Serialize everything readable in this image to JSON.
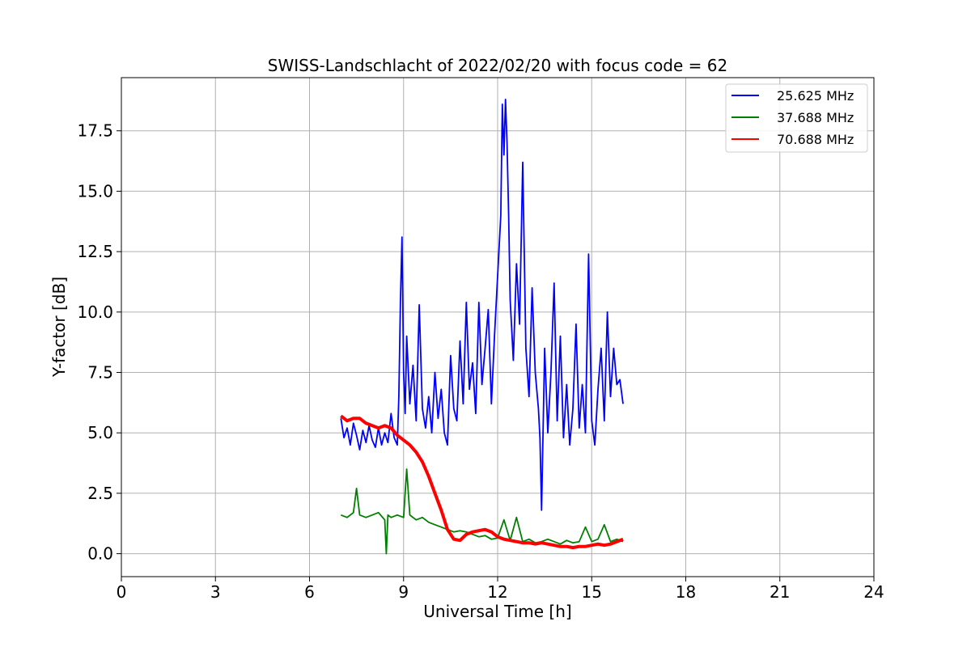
{
  "chart_data": {
    "type": "line",
    "title": "SWISS-Landschlacht of 2022/02/20 with focus code = 62",
    "xlabel": "Universal Time [h]",
    "ylabel": "Y-factor [dB]",
    "xlim": [
      0,
      24
    ],
    "ylim": [
      -0.95,
      19.7
    ],
    "xticks": [
      0,
      3,
      6,
      9,
      12,
      15,
      18,
      21,
      24
    ],
    "xtick_labels": [
      "0",
      "3",
      "6",
      "9",
      "12",
      "15",
      "18",
      "21",
      "24"
    ],
    "yticks": [
      0.0,
      2.5,
      5.0,
      7.5,
      10.0,
      12.5,
      15.0,
      17.5
    ],
    "ytick_labels": [
      "0.0",
      "2.5",
      "5.0",
      "7.5",
      "10.0",
      "12.5",
      "15.0",
      "17.5"
    ],
    "grid": true,
    "legend_position": "top-right",
    "series": [
      {
        "name": "25.625 MHz",
        "color": "#0000ff",
        "x": [
          7.0,
          7.1,
          7.2,
          7.3,
          7.4,
          7.5,
          7.6,
          7.7,
          7.8,
          7.9,
          8.0,
          8.1,
          8.2,
          8.3,
          8.4,
          8.5,
          8.6,
          8.7,
          8.8,
          8.85,
          8.9,
          8.95,
          9.0,
          9.05,
          9.1,
          9.2,
          9.3,
          9.4,
          9.5,
          9.6,
          9.7,
          9.8,
          9.9,
          10.0,
          10.1,
          10.2,
          10.3,
          10.4,
          10.5,
          10.6,
          10.7,
          10.8,
          10.9,
          11.0,
          11.1,
          11.2,
          11.3,
          11.4,
          11.5,
          11.6,
          11.7,
          11.8,
          11.9,
          12.0,
          12.1,
          12.15,
          12.2,
          12.25,
          12.3,
          12.35,
          12.4,
          12.5,
          12.6,
          12.7,
          12.8,
          12.9,
          13.0,
          13.1,
          13.2,
          13.3,
          13.35,
          13.4,
          13.5,
          13.6,
          13.7,
          13.8,
          13.9,
          14.0,
          14.1,
          14.2,
          14.3,
          14.4,
          14.5,
          14.6,
          14.7,
          14.8,
          14.9,
          15.0,
          15.1,
          15.2,
          15.3,
          15.4,
          15.5,
          15.6,
          15.7,
          15.8,
          15.9,
          16.0
        ],
        "y": [
          5.6,
          4.8,
          5.2,
          4.5,
          5.4,
          4.9,
          4.3,
          5.1,
          4.6,
          5.3,
          4.7,
          4.4,
          5.2,
          4.5,
          5.0,
          4.6,
          5.8,
          4.8,
          4.5,
          6.5,
          10.5,
          13.1,
          7.5,
          5.8,
          9.0,
          6.2,
          7.8,
          5.5,
          10.3,
          6.0,
          5.2,
          6.5,
          5.0,
          7.5,
          5.6,
          6.8,
          5.0,
          4.5,
          8.2,
          6.0,
          5.5,
          8.8,
          6.2,
          10.4,
          6.8,
          7.9,
          5.8,
          10.4,
          7.0,
          8.5,
          10.1,
          6.2,
          9.0,
          11.5,
          14.0,
          18.6,
          16.5,
          18.8,
          17.0,
          14.0,
          10.5,
          8.0,
          12.0,
          9.5,
          16.2,
          8.5,
          6.5,
          11.0,
          7.5,
          6.0,
          4.8,
          1.8,
          8.5,
          5.0,
          7.5,
          11.2,
          5.5,
          9.0,
          4.8,
          7.0,
          4.5,
          6.0,
          9.5,
          5.2,
          7.0,
          5.0,
          12.4,
          5.5,
          4.5,
          6.8,
          8.5,
          5.5,
          10.0,
          6.5,
          8.5,
          7.0,
          7.2,
          6.2
        ]
      },
      {
        "name": "37.688 MHz",
        "color": "#008000",
        "x": [
          7.0,
          7.2,
          7.4,
          7.5,
          7.6,
          7.8,
          8.0,
          8.2,
          8.4,
          8.45,
          8.5,
          8.6,
          8.8,
          9.0,
          9.1,
          9.2,
          9.4,
          9.6,
          9.8,
          10.0,
          10.2,
          10.4,
          10.6,
          10.8,
          11.0,
          11.2,
          11.4,
          11.6,
          11.8,
          12.0,
          12.2,
          12.4,
          12.6,
          12.8,
          13.0,
          13.2,
          13.4,
          13.6,
          13.8,
          14.0,
          14.2,
          14.4,
          14.6,
          14.8,
          15.0,
          15.2,
          15.4,
          15.6,
          15.8,
          16.0
        ],
        "y": [
          1.6,
          1.5,
          1.7,
          2.7,
          1.6,
          1.5,
          1.6,
          1.7,
          1.4,
          0.0,
          1.6,
          1.5,
          1.6,
          1.5,
          3.5,
          1.6,
          1.4,
          1.5,
          1.3,
          1.2,
          1.1,
          1.0,
          0.9,
          0.95,
          0.9,
          0.8,
          0.7,
          0.75,
          0.6,
          0.65,
          1.4,
          0.55,
          1.5,
          0.5,
          0.6,
          0.45,
          0.5,
          0.6,
          0.5,
          0.4,
          0.55,
          0.45,
          0.5,
          1.1,
          0.5,
          0.6,
          1.2,
          0.5,
          0.6,
          0.5
        ]
      },
      {
        "name": "70.688 MHz",
        "color": "#ff0000",
        "x": [
          7.0,
          7.2,
          7.4,
          7.6,
          7.8,
          8.0,
          8.2,
          8.4,
          8.6,
          8.8,
          9.0,
          9.2,
          9.4,
          9.6,
          9.8,
          10.0,
          10.2,
          10.4,
          10.6,
          10.8,
          11.0,
          11.2,
          11.4,
          11.6,
          11.8,
          12.0,
          12.2,
          12.4,
          12.6,
          12.8,
          13.0,
          13.2,
          13.4,
          13.6,
          13.8,
          14.0,
          14.2,
          14.4,
          14.6,
          14.8,
          15.0,
          15.2,
          15.4,
          15.6,
          15.8,
          16.0
        ],
        "y": [
          5.7,
          5.5,
          5.6,
          5.6,
          5.4,
          5.3,
          5.2,
          5.3,
          5.2,
          4.9,
          4.7,
          4.5,
          4.2,
          3.8,
          3.2,
          2.5,
          1.8,
          1.0,
          0.6,
          0.55,
          0.8,
          0.9,
          0.95,
          1.0,
          0.9,
          0.7,
          0.6,
          0.55,
          0.5,
          0.45,
          0.45,
          0.4,
          0.45,
          0.4,
          0.35,
          0.3,
          0.3,
          0.25,
          0.3,
          0.3,
          0.35,
          0.4,
          0.35,
          0.4,
          0.5,
          0.6
        ]
      }
    ]
  }
}
